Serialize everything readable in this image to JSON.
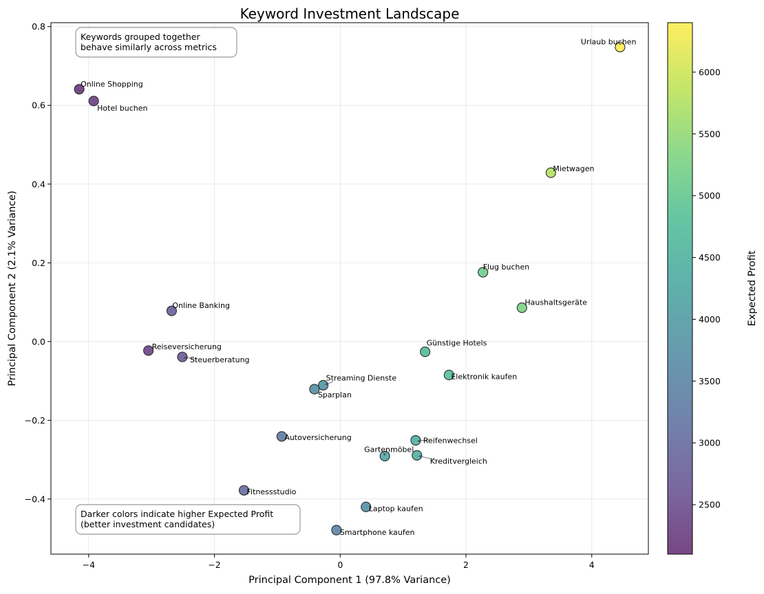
{
  "chart_data": {
    "type": "scatter",
    "title": "Keyword Investment Landscape",
    "xlabel": "Principal Component 1 (97.8% Variance)",
    "ylabel": "Principal Component 2 (2.1% Variance)",
    "xlim": [
      -4.6,
      4.9
    ],
    "ylim": [
      -0.54,
      0.81
    ],
    "xticks": [
      -4,
      -2,
      0,
      2,
      4
    ],
    "yticks": [
      -0.4,
      -0.2,
      0.0,
      0.2,
      0.4,
      0.6,
      0.8
    ],
    "xtick_labels": [
      "−4",
      "−2",
      "0",
      "2",
      "4"
    ],
    "ytick_labels": [
      "−0.4",
      "−0.2",
      "0.0",
      "0.2",
      "0.4",
      "0.6",
      "0.8"
    ],
    "grid": true,
    "colormap": "viridis",
    "colorbar": {
      "label": "Expected Profit",
      "range": [
        2100,
        6400
      ],
      "ticks": [
        2500,
        3000,
        3500,
        4000,
        4500,
        5000,
        5500,
        6000
      ],
      "tick_labels": [
        "2500",
        "3000",
        "3500",
        "4000",
        "4500",
        "5000",
        "5500",
        "6000"
      ]
    },
    "annotations": [
      {
        "id": "top",
        "text": [
          "Keywords grouped together",
          "behave similarly across metrics"
        ],
        "position": "top-left"
      },
      {
        "id": "bottom",
        "text": [
          "Darker colors indicate higher Expected Profit",
          "(better investment candidates)"
        ],
        "position": "bottom-left"
      }
    ],
    "points": [
      {
        "label": "Urlaub buchen",
        "x": 4.45,
        "y": 0.748,
        "profit": 6400
      },
      {
        "label": "Online Shopping",
        "x": -4.15,
        "y": 0.641,
        "profit": 2150
      },
      {
        "label": "Hotel buchen",
        "x": -3.92,
        "y": 0.611,
        "profit": 2300
      },
      {
        "label": "Mietwagen",
        "x": 3.35,
        "y": 0.429,
        "profit": 5800
      },
      {
        "label": "Flug buchen",
        "x": 2.27,
        "y": 0.176,
        "profit": 5150
      },
      {
        "label": "Haushaltsgeräte",
        "x": 2.89,
        "y": 0.086,
        "profit": 5300
      },
      {
        "label": "Online Banking",
        "x": -2.68,
        "y": 0.078,
        "profit": 2750
      },
      {
        "label": "Reiseversicherung",
        "x": -3.05,
        "y": -0.023,
        "profit": 2350
      },
      {
        "label": "Steuerberatung",
        "x": -2.51,
        "y": -0.039,
        "profit": 2700
      },
      {
        "label": "Günstige Hotels",
        "x": 1.35,
        "y": -0.026,
        "profit": 4750
      },
      {
        "label": "Elektronik kaufen",
        "x": 1.73,
        "y": -0.085,
        "profit": 4850
      },
      {
        "label": "Streaming Dienste",
        "x": -0.27,
        "y": -0.111,
        "profit": 3850
      },
      {
        "label": "Sparplan",
        "x": -0.41,
        "y": -0.121,
        "profit": 3750
      },
      {
        "label": "Autoversicherung",
        "x": -0.93,
        "y": -0.241,
        "profit": 3300
      },
      {
        "label": "Reifenwechsel",
        "x": 1.2,
        "y": -0.251,
        "profit": 4450
      },
      {
        "label": "Gartenmöbel",
        "x": 0.71,
        "y": -0.291,
        "profit": 4250
      },
      {
        "label": "Kreditvergleich",
        "x": 1.22,
        "y": -0.289,
        "profit": 4450
      },
      {
        "label": "Fitnessstudio",
        "x": -1.53,
        "y": -0.378,
        "profit": 3050
      },
      {
        "label": "Laptop kaufen",
        "x": 0.41,
        "y": -0.42,
        "profit": 3800
      },
      {
        "label": "Smartphone kaufen",
        "x": -0.06,
        "y": -0.479,
        "profit": 3500
      }
    ]
  }
}
